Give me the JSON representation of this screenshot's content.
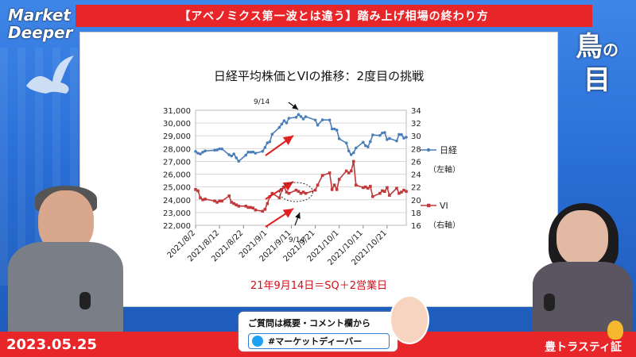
{
  "header": {
    "title": "【アベノミクス第一波とは違う】踏み上げ相場の終わり方"
  },
  "logo": {
    "line1": "Market",
    "line2": "Deeper"
  },
  "corner_logo": {
    "line1": "鳥",
    "small": "の",
    "line2": "目"
  },
  "footer": {
    "date": "2023.05.25",
    "brand": "豊トラスティ証"
  },
  "question_box": {
    "line1": "ご質問は概要・コメント欄から",
    "line2": "#マーケットディーバー"
  },
  "chart_note": "21年9月14日＝SQ＋2営業日",
  "colors": {
    "nikkei": "#4a7eb8",
    "vi": "#c0393b",
    "arrow": "#e02020",
    "accent": "#e8262a"
  },
  "chart_data": {
    "type": "line",
    "title": "日経平均株価とVIの推移：2度目の挑戦",
    "x_tick_labels": [
      "2021/8/2",
      "2021/8/12",
      "2021/8/22",
      "2021/9/1",
      "2021/9/11",
      "2021/9/21",
      "2021/10/1",
      "2021/10/11",
      "2021/10/21"
    ],
    "x_range": [
      "2021/8/2",
      "2021/10/29"
    ],
    "left_axis": {
      "min": 22000,
      "max": 31000,
      "ticks": [
        "22,000",
        "23,000",
        "24,000",
        "25,000",
        "26,000",
        "27,000",
        "28,000",
        "29,000",
        "30,000",
        "31,000"
      ]
    },
    "right_axis": {
      "min": 16,
      "max": 34,
      "ticks": [
        "16",
        "18",
        "20",
        "22",
        "24",
        "26",
        "28",
        "30",
        "32",
        "34"
      ]
    },
    "legend": [
      {
        "name": "日経",
        "sub": "（左軸）"
      },
      {
        "name": "VI",
        "sub": "（右軸）"
      }
    ],
    "annotations": [
      {
        "text": "9/14",
        "target": "nikkei_peak"
      },
      {
        "text": "9/14",
        "target": "vi_circle"
      }
    ],
    "series": [
      {
        "name": "日経",
        "axis": "left",
        "x": [
          "2021/8/2",
          "2021/8/3",
          "2021/8/4",
          "2021/8/5",
          "2021/8/6",
          "2021/8/10",
          "2021/8/11",
          "2021/8/12",
          "2021/8/13",
          "2021/8/16",
          "2021/8/17",
          "2021/8/18",
          "2021/8/19",
          "2021/8/20",
          "2021/8/23",
          "2021/8/24",
          "2021/8/25",
          "2021/8/26",
          "2021/8/27",
          "2021/8/30",
          "2021/8/31",
          "2021/9/1",
          "2021/9/2",
          "2021/9/3",
          "2021/9/6",
          "2021/9/7",
          "2021/9/8",
          "2021/9/9",
          "2021/9/10",
          "2021/9/13",
          "2021/9/14",
          "2021/9/15",
          "2021/9/16",
          "2021/9/17",
          "2021/9/21",
          "2021/9/22",
          "2021/9/24",
          "2021/9/27",
          "2021/9/28",
          "2021/9/29",
          "2021/9/30",
          "2021/10/1",
          "2021/10/4",
          "2021/10/5",
          "2021/10/6",
          "2021/10/7",
          "2021/10/8",
          "2021/10/11",
          "2021/10/12",
          "2021/10/13",
          "2021/10/14",
          "2021/10/15",
          "2021/10/18",
          "2021/10/19",
          "2021/10/20",
          "2021/10/21",
          "2021/10/22",
          "2021/10/25",
          "2021/10/26",
          "2021/10/27",
          "2021/10/28",
          "2021/10/29"
        ],
        "values": [
          27780,
          27640,
          27580,
          27720,
          27820,
          27880,
          27900,
          27980,
          27980,
          27520,
          27420,
          27580,
          27280,
          27010,
          27490,
          27730,
          27720,
          27740,
          27640,
          27790,
          28090,
          28450,
          28540,
          29130,
          29660,
          29920,
          30180,
          30010,
          30380,
          30450,
          30670,
          30510,
          30320,
          30500,
          30240,
          29840,
          30250,
          30240,
          29540,
          29540,
          29450,
          28770,
          28440,
          27820,
          27530,
          27680,
          28050,
          28500,
          28230,
          28140,
          28550,
          29070,
          29030,
          29220,
          29260,
          28710,
          28800,
          28600,
          29110,
          29100,
          28820,
          28890
        ]
      },
      {
        "name": "VI",
        "axis": "right",
        "x": [
          "2021/8/2",
          "2021/8/3",
          "2021/8/4",
          "2021/8/5",
          "2021/8/6",
          "2021/8/10",
          "2021/8/11",
          "2021/8/12",
          "2021/8/13",
          "2021/8/16",
          "2021/8/17",
          "2021/8/18",
          "2021/8/19",
          "2021/8/20",
          "2021/8/23",
          "2021/8/24",
          "2021/8/25",
          "2021/8/26",
          "2021/8/27",
          "2021/8/30",
          "2021/8/31",
          "2021/9/1",
          "2021/9/2",
          "2021/9/3",
          "2021/9/6",
          "2021/9/7",
          "2021/9/8",
          "2021/9/9",
          "2021/9/10",
          "2021/9/13",
          "2021/9/14",
          "2021/9/15",
          "2021/9/16",
          "2021/9/17",
          "2021/9/21",
          "2021/9/22",
          "2021/9/24",
          "2021/9/27",
          "2021/9/28",
          "2021/9/29",
          "2021/9/30",
          "2021/10/1",
          "2021/10/4",
          "2021/10/5",
          "2021/10/6",
          "2021/10/7",
          "2021/10/8",
          "2021/10/11",
          "2021/10/12",
          "2021/10/13",
          "2021/10/14",
          "2021/10/15",
          "2021/10/18",
          "2021/10/19",
          "2021/10/20",
          "2021/10/21",
          "2021/10/22",
          "2021/10/25",
          "2021/10/26",
          "2021/10/27",
          "2021/10/28",
          "2021/10/29"
        ],
        "values": [
          21.6,
          21.4,
          20.3,
          20.0,
          20.1,
          19.8,
          19.6,
          19.8,
          19.8,
          20.6,
          19.6,
          19.4,
          19.2,
          19.0,
          19.0,
          18.8,
          18.8,
          18.7,
          18.4,
          18.2,
          18.5,
          19.4,
          20.5,
          21.0,
          20.3,
          21.5,
          22.0,
          21.2,
          21.0,
          21.5,
          21.3,
          21.0,
          21.2,
          21.0,
          21.5,
          22.3,
          23.8,
          24.2,
          21.6,
          22.3,
          21.6,
          23.2,
          24.5,
          24.2,
          24.5,
          26.0,
          22.3,
          21.9,
          22.0,
          21.8,
          22.1,
          20.5,
          21.0,
          21.4,
          21.3,
          21.9,
          20.7,
          21.8,
          21.0,
          21.2,
          21.5,
          21.3
        ]
      }
    ]
  }
}
